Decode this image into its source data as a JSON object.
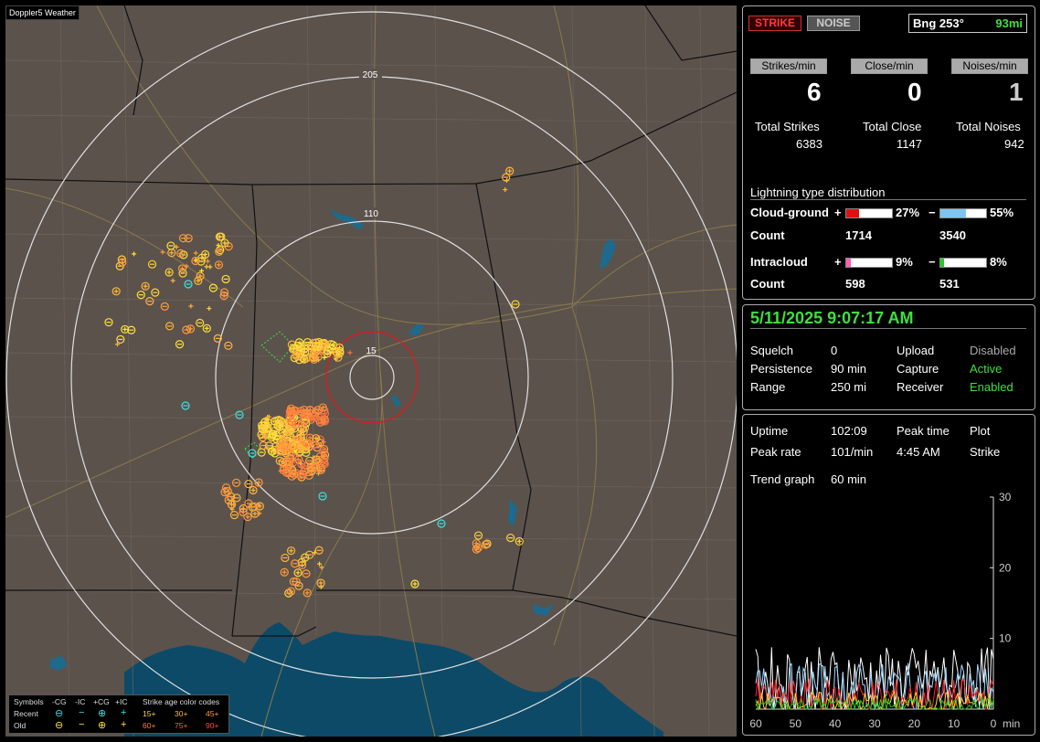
{
  "map": {
    "title": "Doppler5 Weather",
    "range_labels": [
      "205",
      "110",
      "15"
    ]
  },
  "legend": {
    "symbols_label": "Symbols",
    "col_neg_cg": "-CG",
    "col_neg_ic": "-IC",
    "col_pos_cg": "+CG",
    "col_pos_ic": "+IC",
    "age_title": "Strike age color codes",
    "recent_label": "Recent",
    "old_label": "Old",
    "ages_recent": [
      "15+",
      "30+",
      "45+"
    ],
    "ages_old": [
      "60+",
      "75+",
      "90+"
    ],
    "age_colors": [
      "#ffd23a",
      "#ffb43c",
      "#ff9a3c",
      "#ff7f3c",
      "#ff653c",
      "#ff4a3c"
    ]
  },
  "status": {
    "strike_button": "STRIKE",
    "noise_button": "NOISE",
    "bearing": "Bng 253°",
    "distance": "93mi"
  },
  "rates": {
    "strikes_label": "Strikes/min",
    "close_label": "Close/min",
    "noises_label": "Noises/min",
    "strikes_value": "6",
    "close_value": "0",
    "noises_value": "1",
    "total_strikes_label": "Total Strikes",
    "total_close_label": "Total Close",
    "total_noises_label": "Total Noises",
    "total_strikes": "6383",
    "total_close": "1147",
    "total_noises": "942"
  },
  "distribution": {
    "title": "Lightning type distribution",
    "cg_label": "Cloud-ground",
    "ic_label": "Intracloud",
    "count_label": "Count",
    "plus": "+",
    "minus": "−",
    "cg_pos_pct": "27%",
    "cg_neg_pct": "55%",
    "cg_pos_count": "1714",
    "cg_neg_count": "3540",
    "ic_pos_pct": "9%",
    "ic_neg_pct": "8%",
    "ic_pos_count": "598",
    "ic_neg_count": "531",
    "cg_pos_fraction": 0.27,
    "cg_neg_fraction": 0.55,
    "ic_pos_fraction": 0.09,
    "ic_neg_fraction": 0.08
  },
  "settings": {
    "datetime": "5/11/2025 9:07:17 AM",
    "squelch_label": "Squelch",
    "squelch_value": "0",
    "persistence_label": "Persistence",
    "persistence_value": "90 min",
    "range_label": "Range",
    "range_value": "250 mi",
    "upload_label": "Upload",
    "upload_value": "Disabled",
    "capture_label": "Capture",
    "capture_value": "Active",
    "receiver_label": "Receiver",
    "receiver_value": "Enabled"
  },
  "stats": {
    "uptime_label": "Uptime",
    "uptime_value": "102:09",
    "peak_time_label": "Peak time",
    "peak_time_value": "4:45 AM",
    "plot_label": "Plot",
    "plot_value": "Strike",
    "peak_rate_label": "Peak rate",
    "peak_rate_value": "101/min",
    "trend_label": "Trend graph",
    "trend_value": "60 min"
  },
  "trend": {
    "y_ticks": [
      "30",
      "20",
      "10"
    ],
    "x_ticks": [
      "60",
      "50",
      "40",
      "30",
      "20",
      "10",
      "0"
    ],
    "x_unit": "min"
  }
}
